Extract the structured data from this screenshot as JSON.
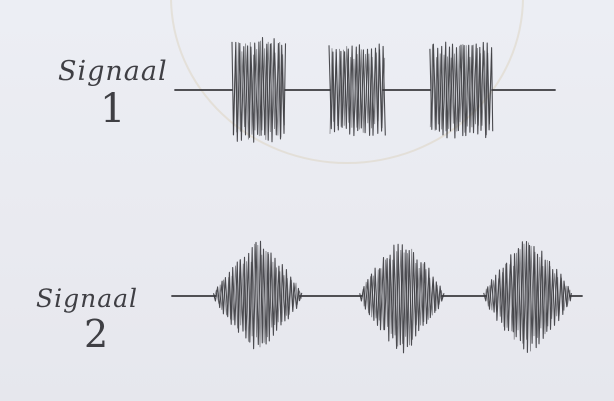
{
  "signal_1": {
    "word": "Signaal",
    "number": "1",
    "burst_shape": "rectangular",
    "bursts": 3
  },
  "signal_2": {
    "word": "Signaal",
    "number": "2",
    "burst_shape": "diamond",
    "bursts": 3
  },
  "colors": {
    "ink": "#3a3a3e",
    "paper": "#ecedf3"
  }
}
